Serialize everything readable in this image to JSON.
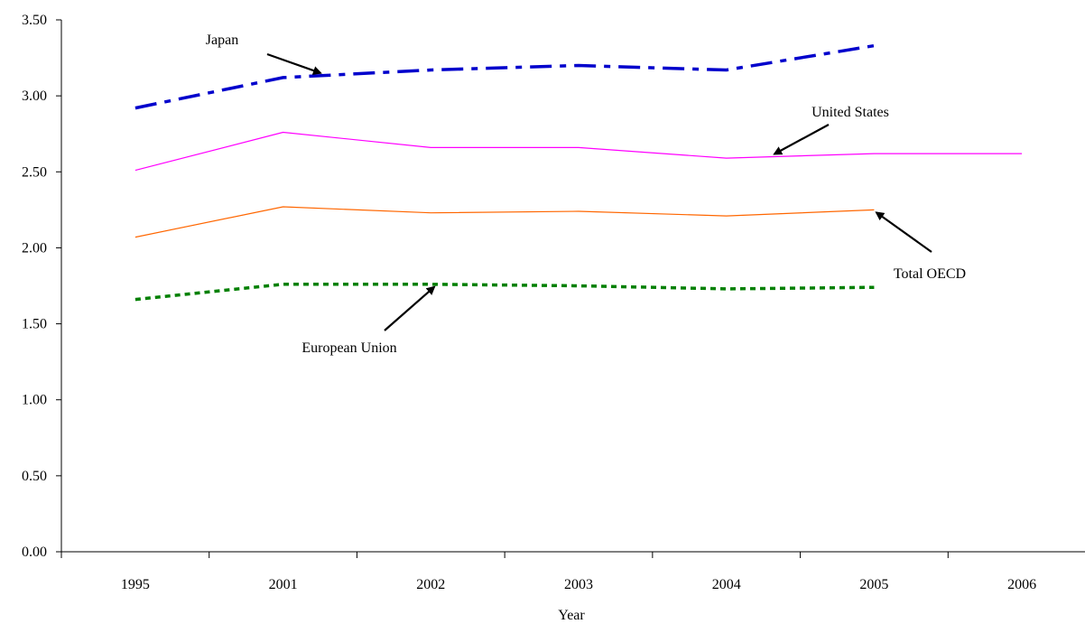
{
  "chart_data": {
    "type": "line",
    "title": "",
    "xlabel": "Year",
    "ylabel": "",
    "categories": [
      "1995",
      "2001",
      "2002",
      "2003",
      "2004",
      "2005",
      "2006"
    ],
    "ylim": [
      0,
      3.5
    ],
    "yticks": [
      "0.00",
      "0.50",
      "1.00",
      "1.50",
      "2.00",
      "2.50",
      "3.00",
      "3.50"
    ],
    "grid": false,
    "legend": "none",
    "series": [
      {
        "name": "Japan",
        "color": "#0000cc",
        "dash": "dash-dot",
        "values": [
          2.92,
          3.12,
          3.17,
          3.2,
          3.17,
          3.33,
          null
        ]
      },
      {
        "name": "United States",
        "color": "#ff00ff",
        "dash": "solid",
        "values": [
          2.51,
          2.76,
          2.66,
          2.66,
          2.59,
          2.62,
          2.62
        ]
      },
      {
        "name": "Total OECD",
        "color": "#ff6600",
        "dash": "solid",
        "values": [
          2.07,
          2.27,
          2.23,
          2.24,
          2.21,
          2.25,
          null
        ]
      },
      {
        "name": "European Union",
        "color": "#008000",
        "dash": "dotted",
        "values": [
          1.66,
          1.76,
          1.76,
          1.75,
          1.73,
          1.74,
          null
        ]
      }
    ],
    "annotations": [
      {
        "text": "Japan",
        "series": "Japan"
      },
      {
        "text": "United States",
        "series": "United States"
      },
      {
        "text": "Total OECD",
        "series": "Total OECD"
      },
      {
        "text": "European Union",
        "series": "European Union"
      }
    ]
  }
}
